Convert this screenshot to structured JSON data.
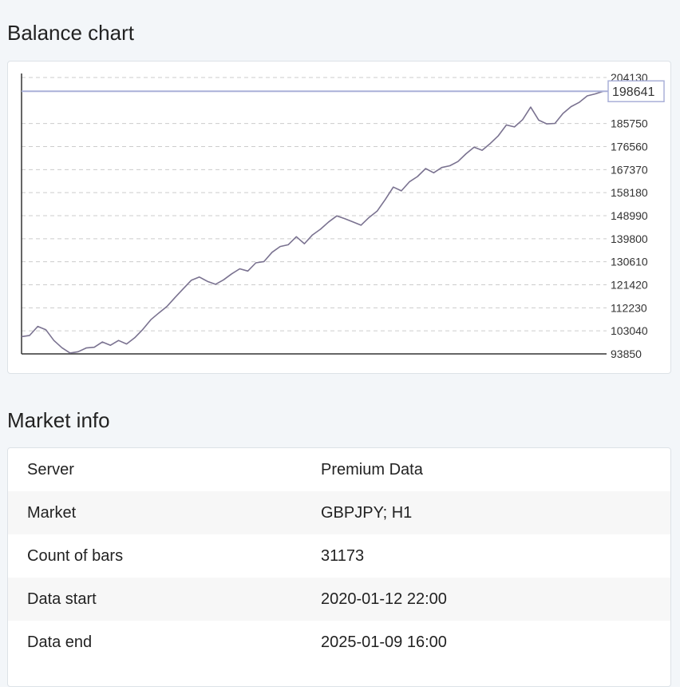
{
  "balance_section": {
    "title": "Balance chart"
  },
  "chart_data": {
    "type": "line",
    "title": "",
    "xlabel": "",
    "ylabel": "",
    "ylim": [
      93850,
      204130
    ],
    "y_ticks": [
      93850,
      103040,
      112230,
      121420,
      130610,
      139800,
      148990,
      158180,
      167370,
      176560,
      185750,
      204130
    ],
    "current_value": 198641,
    "grid": true,
    "colors": {
      "line": "#7a7290",
      "marker": "#aab0d8",
      "grid": "#cccccc",
      "axis": "#333333"
    },
    "series": [
      {
        "values": [
          100740,
          101200,
          104800,
          103500,
          99200,
          96300,
          94200,
          94700,
          96200,
          96500,
          98600,
          97300,
          99200,
          97800,
          100300,
          103600,
          107500,
          110200,
          112800,
          116400,
          119800,
          123200,
          124500,
          122800,
          121600,
          123400,
          125800,
          127800,
          126900,
          130200,
          130700,
          134400,
          136700,
          137400,
          140600,
          137800,
          141300,
          143600,
          146500,
          148900,
          147800,
          146500,
          145200,
          148300,
          150800,
          155400,
          160400,
          158900,
          162500,
          164600,
          167800,
          166100,
          168200,
          168900,
          170600,
          173700,
          176300,
          175100,
          177800,
          180900,
          185200,
          184400,
          187300,
          192300,
          187100,
          185600,
          185800,
          189800,
          192500,
          194200,
          196800,
          197600,
          198641
        ]
      }
    ]
  },
  "market_section": {
    "title": "Market info",
    "rows": [
      {
        "label": "Server",
        "value": "Premium Data"
      },
      {
        "label": "Market",
        "value": "GBPJPY; H1"
      },
      {
        "label": "Count of bars",
        "value": "31173"
      },
      {
        "label": "Data start",
        "value": "2020-01-12 22:00"
      },
      {
        "label": "Data end",
        "value": "2025-01-09 16:00"
      }
    ]
  }
}
